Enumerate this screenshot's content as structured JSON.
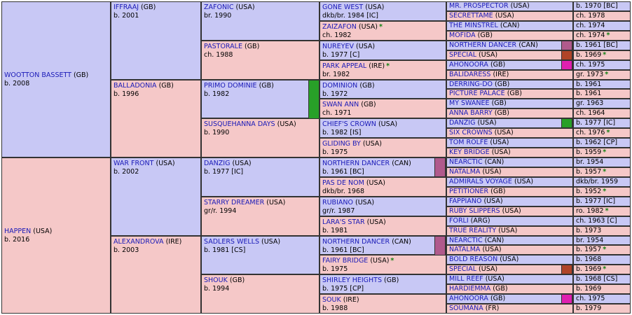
{
  "subject": {
    "name": "WOOTTON BASSETT",
    "nat": "(GB)",
    "info": "b. 2008"
  },
  "dam": {
    "name": "HAPPEN",
    "nat": "(USA)",
    "info": "b. 2016"
  },
  "g2": [
    {
      "name": "IFFRAAJ",
      "nat": "(GB)",
      "info": "b. 2001"
    },
    {
      "name": "BALLADONIA",
      "nat": "(GB)",
      "info": "b. 1996"
    },
    {
      "name": "WAR FRONT",
      "nat": "(USA)",
      "info": "b. 2002"
    },
    {
      "name": "ALEXANDROVA",
      "nat": "(IRE)",
      "info": "b. 2003"
    }
  ],
  "g3": [
    {
      "name": "ZAFONIC",
      "nat": "(USA)",
      "info": "br. 1990"
    },
    {
      "name": "PASTORALE",
      "nat": "(GB)",
      "info": "ch. 1988"
    },
    {
      "name": "PRIMO DOMINIE",
      "nat": "(GB)",
      "info": "b. 1982"
    },
    {
      "name": "SUSQUEHANNA DAYS",
      "nat": "(USA)",
      "info": "b. 1990"
    },
    {
      "name": "DANZIG",
      "nat": "(USA)",
      "info": "b. 1977 [IC]"
    },
    {
      "name": "STARRY DREAMER",
      "nat": "(USA)",
      "info": "gr/r. 1994"
    },
    {
      "name": "SADLERS WELLS",
      "nat": "(USA)",
      "info": "b. 1981 [CS]"
    },
    {
      "name": "SHOUK",
      "nat": "(GB)",
      "info": "b. 1994"
    }
  ],
  "g4": [
    {
      "name": "GONE WEST",
      "nat": "(USA)",
      "info": "dkb/br. 1984 [IC]"
    },
    {
      "name": "ZAIZAFON",
      "nat": "(USA)",
      "info": "ch. 1982",
      "star": "*"
    },
    {
      "name": "NUREYEV",
      "nat": "(USA)",
      "info": "b. 1977 [C]"
    },
    {
      "name": "PARK APPEAL",
      "nat": "(IRE)",
      "info": "br. 1982",
      "star": "*"
    },
    {
      "name": "DOMINION",
      "nat": "(GB)",
      "info": "b. 1972"
    },
    {
      "name": "SWAN ANN",
      "nat": "(GB)",
      "info": "ch. 1971"
    },
    {
      "name": "CHIEF'S CROWN",
      "nat": "(USA)",
      "info": "b. 1982 [IS]"
    },
    {
      "name": "GLIDING BY",
      "nat": "(USA)",
      "info": "b. 1975"
    },
    {
      "name": "NORTHERN DANCER",
      "nat": "(CAN)",
      "info": "b. 1961 [BC]"
    },
    {
      "name": "PAS DE NOM",
      "nat": "(USA)",
      "info": "dkb/br. 1968"
    },
    {
      "name": "RUBIANO",
      "nat": "(USA)",
      "info": "gr/r. 1987"
    },
    {
      "name": "LARA'S STAR",
      "nat": "(USA)",
      "info": "b. 1981"
    },
    {
      "name": "NORTHERN DANCER",
      "nat": "(CAN)",
      "info": "b. 1961 [BC]"
    },
    {
      "name": "FAIRY BRIDGE",
      "nat": "(USA)",
      "info": "b. 1975",
      "star": "*"
    },
    {
      "name": "SHIRLEY HEIGHTS",
      "nat": "(GB)",
      "info": "b. 1975 [CP]"
    },
    {
      "name": "SOUK",
      "nat": "(IRE)",
      "info": "b. 1988"
    }
  ],
  "g5": [
    {
      "name": "MR. PROSPECTOR",
      "nat": "(USA)",
      "info": "b. 1970 [BC]"
    },
    {
      "name": "SECRETTAME",
      "nat": "(USA)",
      "info": "ch. 1978"
    },
    {
      "name": "THE MINSTREL",
      "nat": "(CAN)",
      "info": "ch. 1974"
    },
    {
      "name": "MOFIDA",
      "nat": "(GB)",
      "info": "ch. 1974",
      "star": "*"
    },
    {
      "name": "NORTHERN DANCER",
      "nat": "(CAN)",
      "info": "b. 1961 [BC]"
    },
    {
      "name": "SPECIAL",
      "nat": "(USA)",
      "info": "b. 1969",
      "star": "*"
    },
    {
      "name": "AHONOORA",
      "nat": "(GB)",
      "info": "ch. 1975"
    },
    {
      "name": "BALIDARESS",
      "nat": "(IRE)",
      "info": "gr. 1973",
      "star": "*"
    },
    {
      "name": "DERRING-DO",
      "nat": "(GB)",
      "info": "b. 1961"
    },
    {
      "name": "PICTURE PALACE",
      "nat": "(GB)",
      "info": "b. 1961"
    },
    {
      "name": "MY SWANEE",
      "nat": "(GB)",
      "info": "gr. 1963"
    },
    {
      "name": "ANNA BARRY",
      "nat": "(GB)",
      "info": "ch. 1964"
    },
    {
      "name": "DANZIG",
      "nat": "(USA)",
      "info": "b. 1977 [IC]"
    },
    {
      "name": "SIX CROWNS",
      "nat": "(USA)",
      "info": "ch. 1976",
      "star": "*"
    },
    {
      "name": "TOM ROLFE",
      "nat": "(USA)",
      "info": "b. 1962 [CP]"
    },
    {
      "name": "KEY BRIDGE",
      "nat": "(USA)",
      "info": "b. 1959",
      "star": "*"
    },
    {
      "name": "NEARCTIC",
      "nat": "(CAN)",
      "info": "br. 1954"
    },
    {
      "name": "NATALMA",
      "nat": "(USA)",
      "info": "b. 1957",
      "star": "*"
    },
    {
      "name": "ADMIRALS VOYAGE",
      "nat": "(USA)",
      "info": "dkb/br. 1959"
    },
    {
      "name": "PETITIONER",
      "nat": "(GB)",
      "info": "b. 1952",
      "star": "*"
    },
    {
      "name": "FAPPIANO",
      "nat": "(USA)",
      "info": "b. 1977 [IC]"
    },
    {
      "name": "RUBY SLIPPERS",
      "nat": "(USA)",
      "info": "ro. 1982",
      "star": "*"
    },
    {
      "name": "FORLI",
      "nat": "(ARG)",
      "info": "ch. 1963 [C]"
    },
    {
      "name": "TRUE REALITY",
      "nat": "(USA)",
      "info": "b. 1973"
    },
    {
      "name": "NEARCTIC",
      "nat": "(CAN)",
      "info": "br. 1954"
    },
    {
      "name": "NATALMA",
      "nat": "(USA)",
      "info": "b. 1957",
      "star": "*"
    },
    {
      "name": "BOLD REASON",
      "nat": "(USA)",
      "info": "b. 1968"
    },
    {
      "name": "SPECIAL",
      "nat": "(USA)",
      "info": "b. 1969",
      "star": "*"
    },
    {
      "name": "MILL REEF",
      "nat": "(USA)",
      "info": "b. 1968 [CS]"
    },
    {
      "name": "HARDIEMMA",
      "nat": "(GB)",
      "info": "b. 1969"
    },
    {
      "name": "AHONOORA",
      "nat": "(GB)",
      "info": "ch. 1975"
    },
    {
      "name": "SOUMANA",
      "nat": "(FR)",
      "info": "b. 1979"
    }
  ],
  "colors": {
    "male": "#c8c8f5",
    "female": "#f5c8c8",
    "link": "#1a1ab8",
    "star": "#108010",
    "mark_purple": "#b05a8c",
    "mark_rust": "#b04428",
    "mark_magenta": "#e020b0",
    "mark_green": "#28a028"
  }
}
